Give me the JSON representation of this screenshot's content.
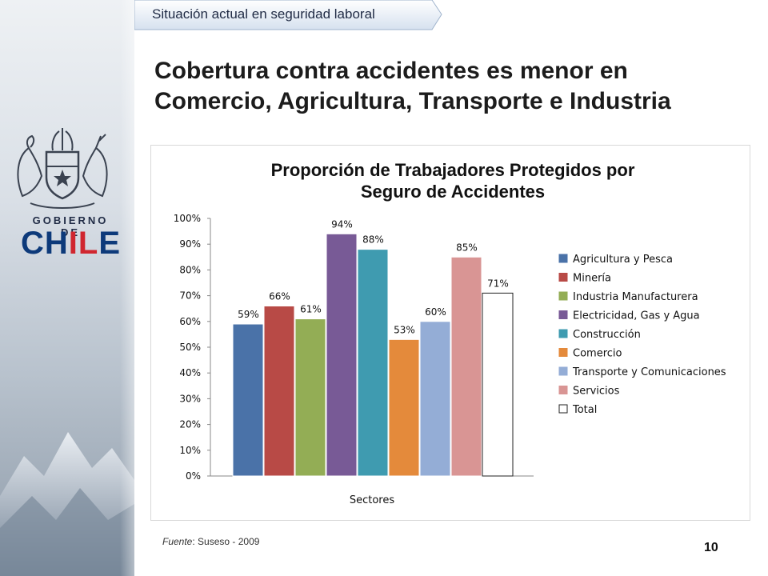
{
  "header": {
    "breadcrumb": "Situación actual en seguridad laboral",
    "title_line1": "Cobertura contra accidentes es menor en",
    "title_line2": "Comercio, Agricultura, Transporte e Industria"
  },
  "branding": {
    "gobierno_de": "GOBIERNO DE",
    "chile_part1": "CH",
    "chile_part2": "IL",
    "chile_part3": "E"
  },
  "footer": {
    "source_label": "Fuente",
    "source_text": ": Suseso - 2009",
    "page_number": "10"
  },
  "chart_data": {
    "type": "bar",
    "title_line1": "Proporción de Trabajadores Protegidos por",
    "title_line2": "Seguro de Accidentes",
    "xlabel": "Sectores",
    "ylabel": "",
    "ylim": [
      0,
      100
    ],
    "yticks": [
      "0%",
      "10%",
      "20%",
      "30%",
      "40%",
      "50%",
      "60%",
      "70%",
      "80%",
      "90%",
      "100%"
    ],
    "grid": false,
    "legend_position": "right",
    "categories": [
      "Agricultura y Pesca",
      "Minería",
      "Industria Manufacturera",
      "Electricidad, Gas y Agua",
      "Construcción",
      "Comercio",
      "Transporte y Comunicaciones",
      "Servicios",
      "Total"
    ],
    "values": [
      59,
      66,
      61,
      94,
      88,
      53,
      60,
      85,
      71
    ],
    "data_labels": [
      "59%",
      "66%",
      "61%",
      "94%",
      "88%",
      "53%",
      "60%",
      "85%",
      "71%"
    ],
    "colors": [
      "#4a72a8",
      "#b84a46",
      "#93ad55",
      "#785a96",
      "#3f9bb0",
      "#e48a3b",
      "#94add6",
      "#d99594",
      "#ffffff"
    ]
  }
}
